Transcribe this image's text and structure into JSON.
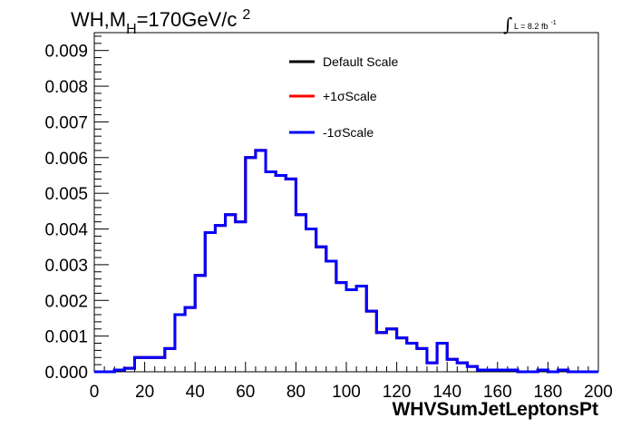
{
  "title": {
    "main": "WH,M",
    "subscript": "H",
    "rest": "=170GeV/c",
    "superscript": "2"
  },
  "lumi": {
    "integral": "∫",
    "text": "L = 8.2 fb",
    "superscript": "-1"
  },
  "legend": {
    "entries": [
      {
        "label": "Default Scale",
        "color": "#000000"
      },
      {
        "label": "+1σScale",
        "color": "#ff0000"
      },
      {
        "label": "-1σScale",
        "color": "#0000ff"
      }
    ]
  },
  "chart_data": {
    "type": "line",
    "style": "step-histogram",
    "xlabel": "WHVSumJetLeptonsPt",
    "ylabel": "",
    "xlim": [
      0,
      200
    ],
    "ylim": [
      0,
      0.0095
    ],
    "xticks": [
      0,
      20,
      40,
      60,
      80,
      100,
      120,
      140,
      160,
      180,
      200
    ],
    "xtick_labels": [
      "0",
      "20",
      "40",
      "60",
      "80",
      "100",
      "120",
      "140",
      "160",
      "180",
      "200"
    ],
    "yticks": [
      0,
      0.001,
      0.002,
      0.003,
      0.004,
      0.005,
      0.006,
      0.007,
      0.008,
      0.009
    ],
    "ytick_labels": [
      "0.000",
      "0.001",
      "0.002",
      "0.003",
      "0.004",
      "0.005",
      "0.006",
      "0.007",
      "0.008",
      "0.009"
    ],
    "bin_width": 4,
    "bin_edges_start": 0,
    "series": [
      {
        "name": "Default Scale",
        "color": "#000000",
        "values": [
          0.0,
          0.0,
          5e-05,
          0.0001,
          0.0004,
          0.0004,
          0.0004,
          0.00065,
          0.0016,
          0.0018,
          0.0027,
          0.0039,
          0.0041,
          0.0044,
          0.0042,
          0.006,
          0.0062,
          0.0056,
          0.0055,
          0.0054,
          0.0044,
          0.004,
          0.0035,
          0.0031,
          0.0025,
          0.0023,
          0.0024,
          0.0017,
          0.0011,
          0.0012,
          0.00095,
          0.0008,
          0.00065,
          0.00025,
          0.0008,
          0.00035,
          0.00025,
          0.00015,
          5e-05,
          5e-05,
          5e-05,
          5e-05,
          0.0,
          0.0,
          5e-05,
          0.0,
          5e-05,
          0.0,
          0.0,
          0.0
        ]
      },
      {
        "name": "+1σScale",
        "color": "#ff0000",
        "values": [
          0.0,
          0.0,
          5e-05,
          0.0001,
          0.0004,
          0.0004,
          0.0004,
          0.00065,
          0.0016,
          0.0018,
          0.0027,
          0.0039,
          0.0041,
          0.0044,
          0.0042,
          0.006,
          0.0062,
          0.0056,
          0.0055,
          0.0054,
          0.0044,
          0.004,
          0.0035,
          0.0031,
          0.0025,
          0.0023,
          0.0024,
          0.0017,
          0.0011,
          0.0012,
          0.00095,
          0.0008,
          0.00065,
          0.00025,
          0.0008,
          0.00035,
          0.00025,
          0.00015,
          5e-05,
          5e-05,
          5e-05,
          5e-05,
          0.0,
          0.0,
          5e-05,
          0.0,
          5e-05,
          0.0,
          0.0,
          0.0
        ]
      },
      {
        "name": "-1σScale",
        "color": "#0000ff",
        "values": [
          0.0,
          0.0,
          5e-05,
          0.0001,
          0.0004,
          0.0004,
          0.0004,
          0.00065,
          0.0016,
          0.0018,
          0.0027,
          0.0039,
          0.0041,
          0.0044,
          0.0042,
          0.006,
          0.0062,
          0.0056,
          0.0055,
          0.0054,
          0.0044,
          0.004,
          0.0035,
          0.0031,
          0.0025,
          0.0023,
          0.0024,
          0.0017,
          0.0011,
          0.0012,
          0.00095,
          0.0008,
          0.00065,
          0.00025,
          0.0008,
          0.00035,
          0.00025,
          0.00015,
          5e-05,
          5e-05,
          5e-05,
          5e-05,
          0.0,
          0.0,
          5e-05,
          0.0,
          5e-05,
          0.0,
          0.0,
          0.0
        ]
      }
    ],
    "grid": false,
    "legend_position": "top-center"
  }
}
